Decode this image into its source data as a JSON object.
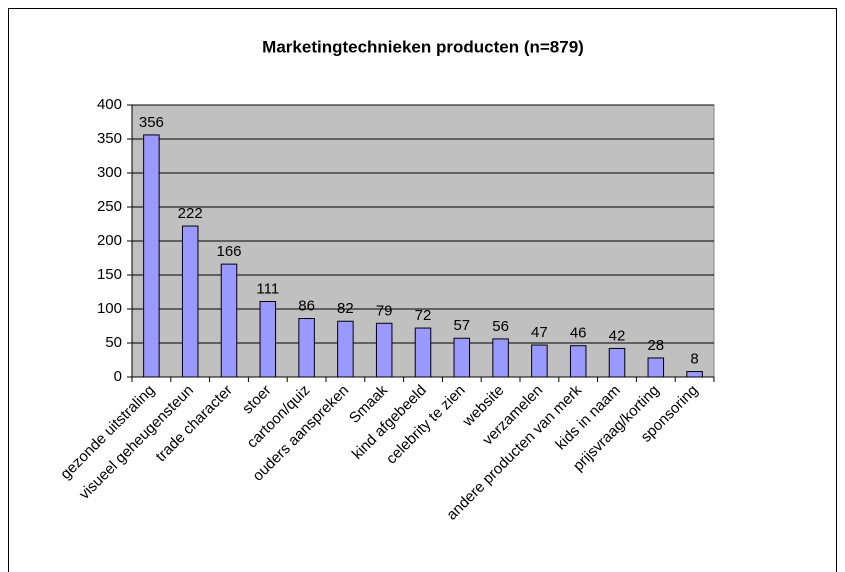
{
  "chart_data": {
    "type": "bar",
    "title": "Marketingtechnieken producten (n=879)",
    "categories": [
      "gezonde uitstraling",
      "visueel geheugensteun",
      "trade character",
      "stoer",
      "cartoon/quiz",
      "ouders aanspreken",
      "Smaak",
      "kind afgebeeld",
      "celebrity te zien",
      "website",
      "verzamelen",
      "andere producten van merk",
      "kids in naam",
      "prijsvraag/korting",
      "sponsoring"
    ],
    "values": [
      356,
      222,
      166,
      111,
      86,
      82,
      79,
      72,
      57,
      56,
      47,
      46,
      42,
      28,
      8
    ],
    "color": "#9999ff",
    "plot_background": "#c0c0c0",
    "ylim": [
      0,
      400
    ],
    "yticks": [
      0,
      50,
      100,
      150,
      200,
      250,
      300,
      350,
      400
    ],
    "grid": true
  }
}
